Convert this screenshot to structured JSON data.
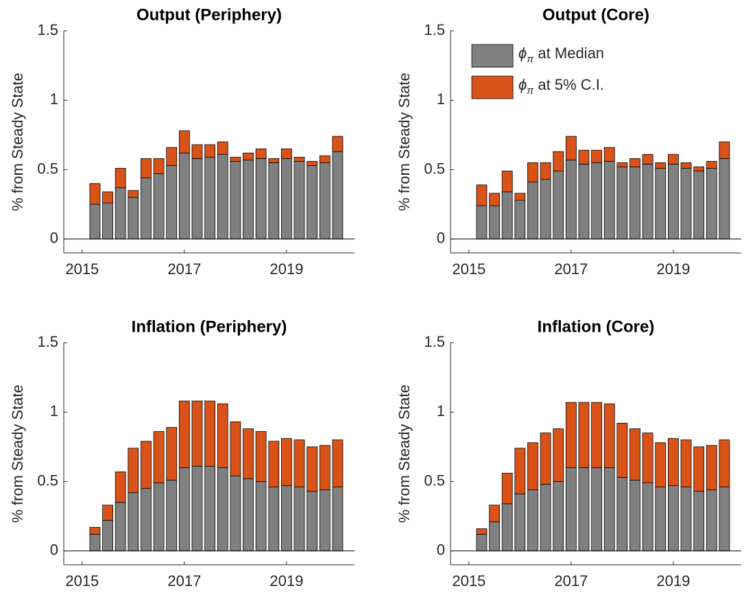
{
  "chart_data": [
    {
      "type": "bar",
      "stacked": true,
      "title": "Output (Periphery)",
      "y_label": "% from Steady State",
      "x": [
        2015.25,
        2015.5,
        2015.75,
        2016,
        2016.25,
        2016.5,
        2016.75,
        2017,
        2017.25,
        2017.5,
        2017.75,
        2018,
        2018.25,
        2018.5,
        2018.75,
        2019,
        2019.25,
        2019.5,
        2019.75,
        2020
      ],
      "xlim": [
        2014.64,
        2020.33
      ],
      "xticks": [
        2015,
        2017,
        2019
      ],
      "ylim": [
        -0.1,
        1.5
      ],
      "yticks": [
        0,
        0.5,
        1,
        1.5
      ],
      "series": [
        {
          "color": "#808080",
          "values": [
            0.25,
            0.26,
            0.37,
            0.3,
            0.44,
            0.47,
            0.53,
            0.62,
            0.58,
            0.59,
            0.61,
            0.56,
            0.57,
            0.58,
            0.55,
            0.58,
            0.56,
            0.53,
            0.55,
            0.63
          ]
        },
        {
          "color": "#d95319",
          "values": [
            0.15,
            0.08,
            0.14,
            0.05,
            0.14,
            0.11,
            0.13,
            0.16,
            0.1,
            0.09,
            0.09,
            0.03,
            0.05,
            0.07,
            0.03,
            0.07,
            0.03,
            0.03,
            0.05,
            0.11
          ]
        }
      ]
    },
    {
      "type": "bar",
      "stacked": true,
      "title": "Output (Core)",
      "y_label": "% from Steady State",
      "legend": "northwest",
      "x": [
        2015.25,
        2015.5,
        2015.75,
        2016,
        2016.25,
        2016.5,
        2016.75,
        2017,
        2017.25,
        2017.5,
        2017.75,
        2018,
        2018.25,
        2018.5,
        2018.75,
        2019,
        2019.25,
        2019.5,
        2019.75,
        2020
      ],
      "xlim": [
        2014.64,
        2020.33
      ],
      "xticks": [
        2015,
        2017,
        2019
      ],
      "ylim": [
        -0.1,
        1.5
      ],
      "yticks": [
        0,
        0.5,
        1,
        1.5
      ],
      "series": [
        {
          "name": "ϕπ at Median",
          "color": "#808080",
          "values": [
            0.24,
            0.24,
            0.34,
            0.28,
            0.41,
            0.43,
            0.49,
            0.57,
            0.54,
            0.55,
            0.56,
            0.52,
            0.52,
            0.54,
            0.51,
            0.54,
            0.51,
            0.49,
            0.51,
            0.58
          ]
        },
        {
          "name": "ϕπ at 5% C.I.",
          "color": "#d95319",
          "values": [
            0.15,
            0.09,
            0.15,
            0.05,
            0.14,
            0.12,
            0.14,
            0.17,
            0.1,
            0.09,
            0.1,
            0.03,
            0.06,
            0.07,
            0.04,
            0.07,
            0.04,
            0.03,
            0.05,
            0.12
          ]
        }
      ]
    },
    {
      "type": "bar",
      "stacked": true,
      "title": "Inflation (Periphery)",
      "y_label": "% from Steady State",
      "x": [
        2015.25,
        2015.5,
        2015.75,
        2016,
        2016.25,
        2016.5,
        2016.75,
        2017,
        2017.25,
        2017.5,
        2017.75,
        2018,
        2018.25,
        2018.5,
        2018.75,
        2019,
        2019.25,
        2019.5,
        2019.75,
        2020
      ],
      "xlim": [
        2014.64,
        2020.33
      ],
      "xticks": [
        2015,
        2017,
        2019
      ],
      "ylim": [
        -0.1,
        1.5
      ],
      "yticks": [
        0,
        0.5,
        1,
        1.5
      ],
      "series": [
        {
          "color": "#808080",
          "values": [
            0.12,
            0.22,
            0.35,
            0.42,
            0.45,
            0.49,
            0.51,
            0.6,
            0.61,
            0.61,
            0.6,
            0.54,
            0.52,
            0.5,
            0.46,
            0.47,
            0.46,
            0.43,
            0.44,
            0.46
          ]
        },
        {
          "color": "#d95319",
          "values": [
            0.05,
            0.11,
            0.22,
            0.32,
            0.34,
            0.37,
            0.38,
            0.48,
            0.47,
            0.47,
            0.46,
            0.39,
            0.36,
            0.36,
            0.33,
            0.34,
            0.34,
            0.32,
            0.32,
            0.34
          ]
        }
      ]
    },
    {
      "type": "bar",
      "stacked": true,
      "title": "Inflation (Core)",
      "y_label": "% from Steady State",
      "x": [
        2015.25,
        2015.5,
        2015.75,
        2016,
        2016.25,
        2016.5,
        2016.75,
        2017,
        2017.25,
        2017.5,
        2017.75,
        2018,
        2018.25,
        2018.5,
        2018.75,
        2019,
        2019.25,
        2019.5,
        2019.75,
        2020
      ],
      "xlim": [
        2014.64,
        2020.33
      ],
      "xticks": [
        2015,
        2017,
        2019
      ],
      "ylim": [
        -0.1,
        1.5
      ],
      "yticks": [
        0,
        0.5,
        1,
        1.5
      ],
      "series": [
        {
          "color": "#808080",
          "values": [
            0.12,
            0.21,
            0.34,
            0.41,
            0.44,
            0.48,
            0.5,
            0.6,
            0.6,
            0.6,
            0.6,
            0.53,
            0.51,
            0.49,
            0.46,
            0.47,
            0.46,
            0.43,
            0.44,
            0.46
          ]
        },
        {
          "color": "#d95319",
          "values": [
            0.04,
            0.12,
            0.22,
            0.33,
            0.34,
            0.37,
            0.38,
            0.47,
            0.47,
            0.47,
            0.46,
            0.39,
            0.37,
            0.36,
            0.32,
            0.34,
            0.34,
            0.32,
            0.32,
            0.34
          ]
        }
      ]
    }
  ]
}
